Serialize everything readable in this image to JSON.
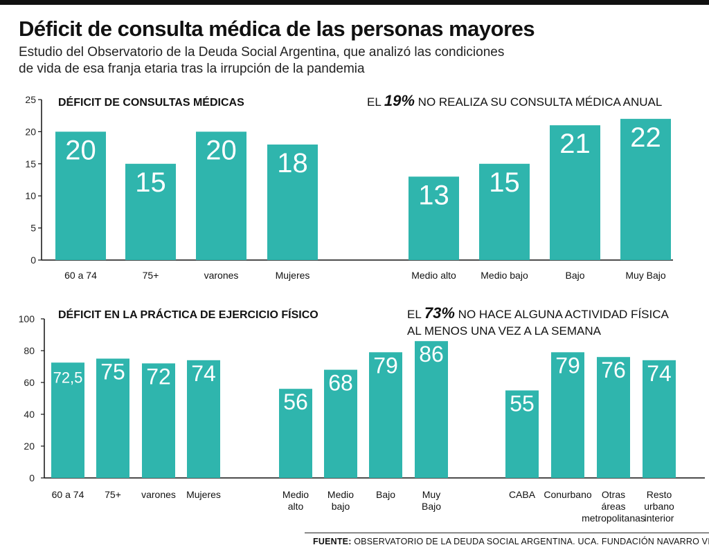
{
  "header": {
    "title": "Déficit de consulta médica de las personas mayores",
    "subtitle_line1": "Estudio del Observatorio de la Deuda Social Argentina, que analizó las condiciones",
    "subtitle_line2": "de vida de esa franja etaria tras la irrupción de la pandemia"
  },
  "colors": {
    "bar": "#2fb5ad",
    "bar_text": "#ffffff",
    "axis": "#111111"
  },
  "chart_data": [
    {
      "type": "bar",
      "title": "DÉFICIT DE CONSULTAS MÉDICAS",
      "annotation": {
        "prefix": "EL ",
        "highlight": "19%",
        "lines": [
          "NO REALIZA SU CONSULTA MÉDICA ANUAL"
        ]
      },
      "ylim": [
        0,
        25
      ],
      "yticks": [
        0,
        5,
        10,
        15,
        20,
        25
      ],
      "grid": false,
      "groups": [
        {
          "categories": [
            [
              "60 a 74"
            ],
            [
              "75+"
            ],
            [
              "varones"
            ],
            [
              "Mujeres"
            ]
          ],
          "values": [
            20,
            15,
            20,
            18
          ],
          "labels": [
            "20",
            "15",
            "20",
            "18"
          ]
        },
        {
          "categories": [
            [
              "Medio alto"
            ],
            [
              "Medio bajo"
            ],
            [
              "Bajo"
            ],
            [
              "Muy Bajo"
            ]
          ],
          "values": [
            13,
            15,
            21,
            22
          ],
          "labels": [
            "13",
            "15",
            "21",
            "22"
          ]
        }
      ]
    },
    {
      "type": "bar",
      "title": "DÉFICIT EN LA PRÁCTICA DE EJERCICIO FÍSICO",
      "annotation": {
        "prefix": "EL ",
        "highlight": "73%",
        "lines": [
          "NO HACE ALGUNA ACTIVIDAD FÍSICA",
          "AL MENOS UNA VEZ A LA SEMANA"
        ]
      },
      "ylim": [
        0,
        100
      ],
      "yticks": [
        0,
        20,
        40,
        60,
        80,
        100
      ],
      "grid": false,
      "groups": [
        {
          "categories": [
            [
              "60 a 74"
            ],
            [
              "75+"
            ],
            [
              "varones"
            ],
            [
              "Mujeres"
            ]
          ],
          "values": [
            72.5,
            75,
            72,
            74
          ],
          "labels": [
            "72,5",
            "75",
            "72",
            "74"
          ]
        },
        {
          "categories": [
            [
              "Medio",
              "alto"
            ],
            [
              "Medio",
              "bajo"
            ],
            [
              "Bajo"
            ],
            [
              "Muy",
              "Bajo"
            ]
          ],
          "values": [
            56,
            68,
            79,
            86
          ],
          "labels": [
            "56",
            "68",
            "79",
            "86"
          ]
        },
        {
          "categories": [
            [
              "CABA"
            ],
            [
              "Conurbano"
            ],
            [
              "Otras",
              "áreas",
              "metropolitanas"
            ],
            [
              "Resto",
              "urbano",
              "interior"
            ]
          ],
          "values": [
            55,
            79,
            76,
            74
          ],
          "labels": [
            "55",
            "79",
            "76",
            "74"
          ]
        }
      ]
    }
  ],
  "footer": {
    "source_label": "FUENTE:",
    "source_text": " OBSERVATORIO DE LA DEUDA SOCIAL ARGENTINA. UCA. FUNDACIÓN NAVARRO VIOLA"
  }
}
